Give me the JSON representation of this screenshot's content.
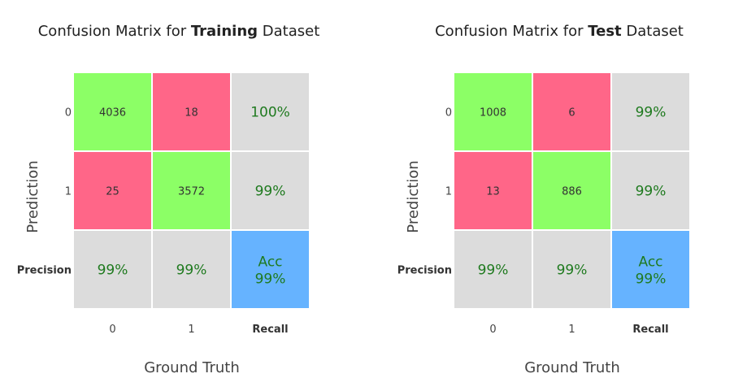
{
  "colors": {
    "correct": "#8cff66",
    "wrong": "#ff6688",
    "summary": "#dcdcdc",
    "accuracy": "#66b3ff",
    "pct_text": "#1f7a1f"
  },
  "chart_data": [
    {
      "type": "heatmap",
      "title_prefix": "Confusion Matrix for ",
      "title_bold": "Training",
      "title_suffix": " Dataset",
      "xlabel": "Ground Truth",
      "ylabel": "Prediction",
      "row_labels": [
        "0",
        "1",
        "Precision"
      ],
      "col_labels": [
        "0",
        "1",
        "Recall"
      ],
      "counts": [
        [
          4036,
          18
        ],
        [
          25,
          3572
        ]
      ],
      "recall": [
        "100%",
        "99%"
      ],
      "precision": [
        "99%",
        "99%"
      ],
      "accuracy_label": "Acc",
      "accuracy": "99%"
    },
    {
      "type": "heatmap",
      "title_prefix": "Confusion Matrix for ",
      "title_bold": "Test",
      "title_suffix": " Dataset",
      "xlabel": "Ground Truth",
      "ylabel": "Prediction",
      "row_labels": [
        "0",
        "1",
        "Precision"
      ],
      "col_labels": [
        "0",
        "1",
        "Recall"
      ],
      "counts": [
        [
          1008,
          6
        ],
        [
          13,
          886
        ]
      ],
      "recall": [
        "99%",
        "99%"
      ],
      "precision": [
        "99%",
        "99%"
      ],
      "accuracy_label": "Acc",
      "accuracy": "99%"
    }
  ]
}
